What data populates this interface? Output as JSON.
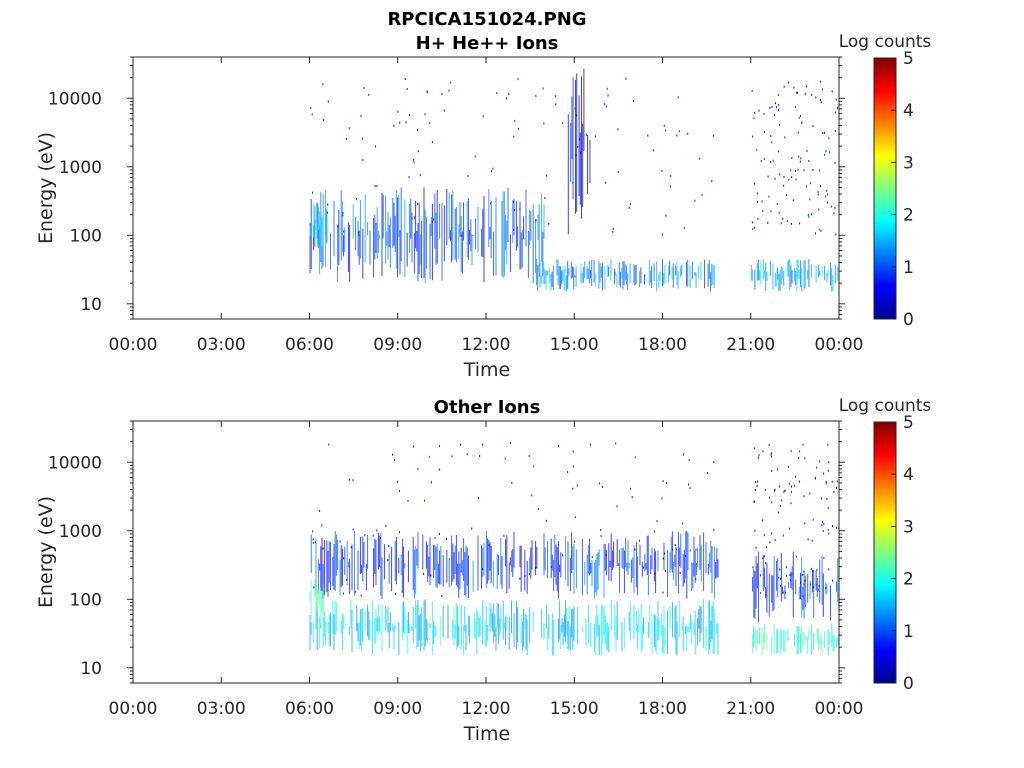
{
  "figure": {
    "title": "RPCICA151024.PNG"
  },
  "chart_data": [
    {
      "type": "heatmap",
      "title": "H+ He++ Ions",
      "xlabel": "Time",
      "ylabel": "Energy (eV)",
      "y_scale": "log",
      "ylim": [
        6,
        40000
      ],
      "xlim": [
        "00:00",
        "24:00"
      ],
      "x_ticks": [
        "00:00",
        "03:00",
        "06:00",
        "09:00",
        "12:00",
        "15:00",
        "18:00",
        "21:00",
        "00:00"
      ],
      "y_ticks": [
        "10",
        "100",
        "1000",
        "10000"
      ],
      "y_tick_values": [
        10,
        100,
        1000,
        10000
      ],
      "colorbar": {
        "label": "Log counts",
        "range": [
          0,
          5
        ],
        "ticks": [
          "0",
          "1",
          "2",
          "3",
          "4",
          "5"
        ],
        "colormap": "jet"
      },
      "data_intervals_hours": [
        [
          6.0,
          19.9
        ],
        [
          21.0,
          24.0
        ]
      ],
      "bands": [
        {
          "t0": 6.0,
          "t1": 14.0,
          "e_low": 20,
          "e_high": 500,
          "log_counts": 1.0
        },
        {
          "t0": 6.0,
          "t1": 6.6,
          "e_low": 60,
          "e_high": 300,
          "log_counts": 1.8
        },
        {
          "t0": 13.7,
          "t1": 19.9,
          "e_low": 15,
          "e_high": 45,
          "log_counts": 1.3
        },
        {
          "t0": 14.7,
          "t1": 15.6,
          "e_low": 100,
          "e_high": 30000,
          "log_counts": 0.5
        },
        {
          "t0": 21.0,
          "t1": 24.0,
          "e_low": 15,
          "e_high": 45,
          "log_counts": 1.5
        }
      ]
    },
    {
      "type": "heatmap",
      "title": "Other Ions",
      "xlabel": "Time",
      "ylabel": "Energy (eV)",
      "y_scale": "log",
      "ylim": [
        6,
        40000
      ],
      "xlim": [
        "00:00",
        "24:00"
      ],
      "x_ticks": [
        "00:00",
        "03:00",
        "06:00",
        "09:00",
        "12:00",
        "15:00",
        "18:00",
        "21:00",
        "00:00"
      ],
      "y_ticks": [
        "10",
        "100",
        "1000",
        "10000"
      ],
      "y_tick_values": [
        10,
        100,
        1000,
        10000
      ],
      "colorbar": {
        "label": "Log counts",
        "range": [
          0,
          5
        ],
        "ticks": [
          "0",
          "1",
          "2",
          "3",
          "4",
          "5"
        ],
        "colormap": "jet"
      },
      "data_intervals_hours": [
        [
          6.0,
          19.9
        ],
        [
          21.0,
          24.0
        ]
      ],
      "bands": [
        {
          "t0": 6.0,
          "t1": 19.9,
          "e_low": 100,
          "e_high": 1000,
          "log_counts": 0.9
        },
        {
          "t0": 6.0,
          "t1": 19.9,
          "e_low": 15,
          "e_high": 100,
          "log_counts": 1.7
        },
        {
          "t0": 6.0,
          "t1": 6.5,
          "e_low": 40,
          "e_high": 300,
          "log_counts": 2.3
        },
        {
          "t0": 21.0,
          "t1": 24.0,
          "e_low": 15,
          "e_high": 45,
          "log_counts": 2.1
        },
        {
          "t0": 21.0,
          "t1": 24.0,
          "e_low": 45,
          "e_high": 500,
          "log_counts": 0.9
        }
      ]
    }
  ]
}
